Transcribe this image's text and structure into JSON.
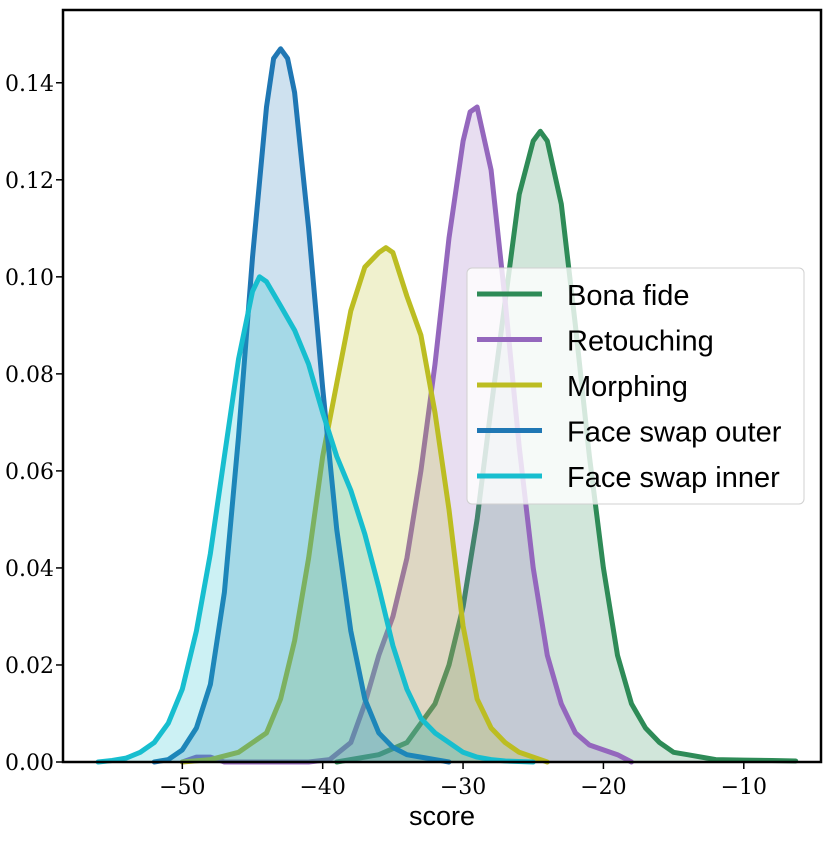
{
  "chart_data": {
    "type": "area",
    "title": "",
    "xlabel": "score",
    "ylabel": "",
    "xlim": [
      -58.5,
      -4.5
    ],
    "ylim": [
      0,
      0.155
    ],
    "x_ticks": [
      -50,
      -40,
      -30,
      -20,
      -10
    ],
    "x_tick_labels": [
      "−50",
      "−40",
      "−30",
      "−20",
      "−10"
    ],
    "y_ticks": [
      0,
      0.02,
      0.04,
      0.06,
      0.08,
      0.1,
      0.12,
      0.14
    ],
    "y_tick_labels": [
      "0.00",
      "0.02",
      "0.04",
      "0.06",
      "0.08",
      "0.10",
      "0.12",
      "0.14"
    ],
    "grid": false,
    "legend_position": "center-right",
    "series": [
      {
        "name": "Bona fide",
        "color": "#2e8b57",
        "x": [
          -39,
          -36,
          -34,
          -32,
          -31,
          -30,
          -29,
          -28,
          -27,
          -26,
          -25,
          -24.5,
          -24,
          -23,
          -22,
          -21,
          -20,
          -19,
          -18,
          -17,
          -16,
          -15,
          -14,
          -12,
          -10,
          -8,
          -6.3
        ],
        "y": [
          0.0,
          0.0015,
          0.004,
          0.012,
          0.02,
          0.032,
          0.05,
          0.073,
          0.095,
          0.117,
          0.128,
          0.13,
          0.128,
          0.115,
          0.09,
          0.063,
          0.04,
          0.022,
          0.012,
          0.007,
          0.004,
          0.002,
          0.0015,
          0.0005,
          0.0004,
          0.0003,
          0.0002
        ]
      },
      {
        "name": "Retouching",
        "color": "#9467bd",
        "x": [
          -50,
          -49,
          -48,
          -47,
          -45,
          -43,
          -41,
          -39.5,
          -38,
          -37,
          -36,
          -35,
          -34,
          -33,
          -32,
          -31,
          -30,
          -29.5,
          -29,
          -28,
          -27,
          -26,
          -25,
          -24,
          -23,
          -22,
          -21,
          -20,
          -19,
          -18
        ],
        "y": [
          0.0,
          0.001,
          0.001,
          0.0,
          0.0,
          0.0,
          0.0,
          0.0005,
          0.004,
          0.012,
          0.022,
          0.03,
          0.042,
          0.06,
          0.082,
          0.108,
          0.128,
          0.134,
          0.135,
          0.122,
          0.095,
          0.065,
          0.04,
          0.022,
          0.012,
          0.006,
          0.0035,
          0.0025,
          0.0015,
          0.0
        ]
      },
      {
        "name": "Morphing",
        "color": "#bcbd22",
        "x": [
          -50,
          -48,
          -46,
          -44,
          -43,
          -42,
          -41,
          -40,
          -39,
          -38,
          -37,
          -36,
          -35.5,
          -35,
          -34,
          -33,
          -32,
          -31,
          -30,
          -29,
          -28,
          -27,
          -26,
          -25,
          -24
        ],
        "y": [
          0.0,
          0.0005,
          0.002,
          0.006,
          0.013,
          0.025,
          0.042,
          0.063,
          0.078,
          0.093,
          0.102,
          0.105,
          0.106,
          0.105,
          0.096,
          0.088,
          0.072,
          0.052,
          0.028,
          0.013,
          0.007,
          0.004,
          0.002,
          0.001,
          0.0
        ]
      },
      {
        "name": "Face swap outer",
        "color": "#1f77b4",
        "x": [
          -52,
          -51,
          -50,
          -49,
          -48,
          -47,
          -46,
          -45,
          -44,
          -43.5,
          -43,
          -42.5,
          -42,
          -41,
          -40,
          -39,
          -38,
          -37,
          -36,
          -35,
          -34,
          -33,
          -32,
          -31
        ],
        "y": [
          0.0,
          0.0005,
          0.0025,
          0.007,
          0.016,
          0.035,
          0.067,
          0.104,
          0.135,
          0.145,
          0.147,
          0.145,
          0.138,
          0.11,
          0.077,
          0.048,
          0.027,
          0.013,
          0.006,
          0.003,
          0.0015,
          0.001,
          0.0005,
          0.0
        ]
      },
      {
        "name": "Face swap inner",
        "color": "#17becf",
        "x": [
          -56,
          -55,
          -54,
          -53,
          -52,
          -51,
          -50,
          -49,
          -48,
          -47,
          -46,
          -45,
          -44.5,
          -44,
          -43,
          -42,
          -41,
          -40,
          -39,
          -38,
          -37,
          -36,
          -35,
          -34,
          -33,
          -32,
          -31,
          -30,
          -29,
          -28,
          -27,
          -25
        ],
        "y": [
          0.0,
          0.0003,
          0.0008,
          0.002,
          0.004,
          0.008,
          0.015,
          0.027,
          0.043,
          0.063,
          0.083,
          0.097,
          0.1,
          0.099,
          0.094,
          0.089,
          0.082,
          0.072,
          0.063,
          0.056,
          0.047,
          0.036,
          0.024,
          0.015,
          0.009,
          0.006,
          0.004,
          0.002,
          0.001,
          0.0005,
          0.0002,
          0.0
        ]
      }
    ]
  }
}
